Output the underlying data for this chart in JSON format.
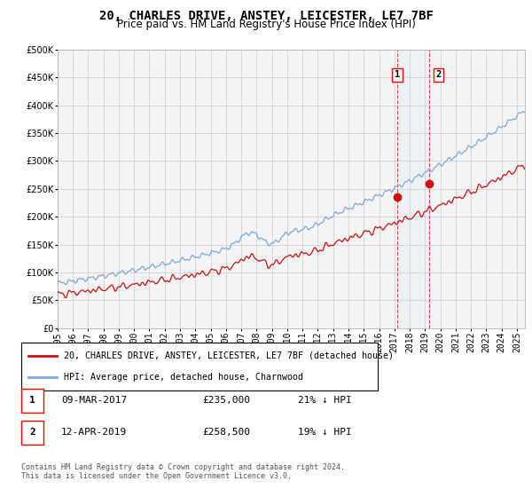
{
  "title": "20, CHARLES DRIVE, ANSTEY, LEICESTER, LE7 7BF",
  "subtitle": "Price paid vs. HM Land Registry's House Price Index (HPI)",
  "yticks": [
    0,
    50000,
    100000,
    150000,
    200000,
    250000,
    300000,
    350000,
    400000,
    450000,
    500000
  ],
  "start_year": 1995,
  "end_year": 2025,
  "hpi_color": "#7faadd",
  "price_color": "#cc1111",
  "point1_year": 2017.18,
  "point1_value": 235000,
  "point2_year": 2019.28,
  "point2_value": 258500,
  "bg_color": "#ffffff",
  "grid_color": "#cccccc",
  "shade_color": "#ddeeff",
  "legend_label1": "20, CHARLES DRIVE, ANSTEY, LEICESTER, LE7 7BF (detached house)",
  "legend_label2": "HPI: Average price, detached house, Charnwood",
  "table_row1": [
    "1",
    "09-MAR-2017",
    "£235,000",
    "21% ↓ HPI"
  ],
  "table_row2": [
    "2",
    "12-APR-2019",
    "£258,500",
    "19% ↓ HPI"
  ],
  "footnote": "Contains HM Land Registry data © Crown copyright and database right 2024.\nThis data is licensed under the Open Government Licence v3.0.",
  "title_fontsize": 10,
  "subtitle_fontsize": 8.5,
  "tick_fontsize": 7
}
